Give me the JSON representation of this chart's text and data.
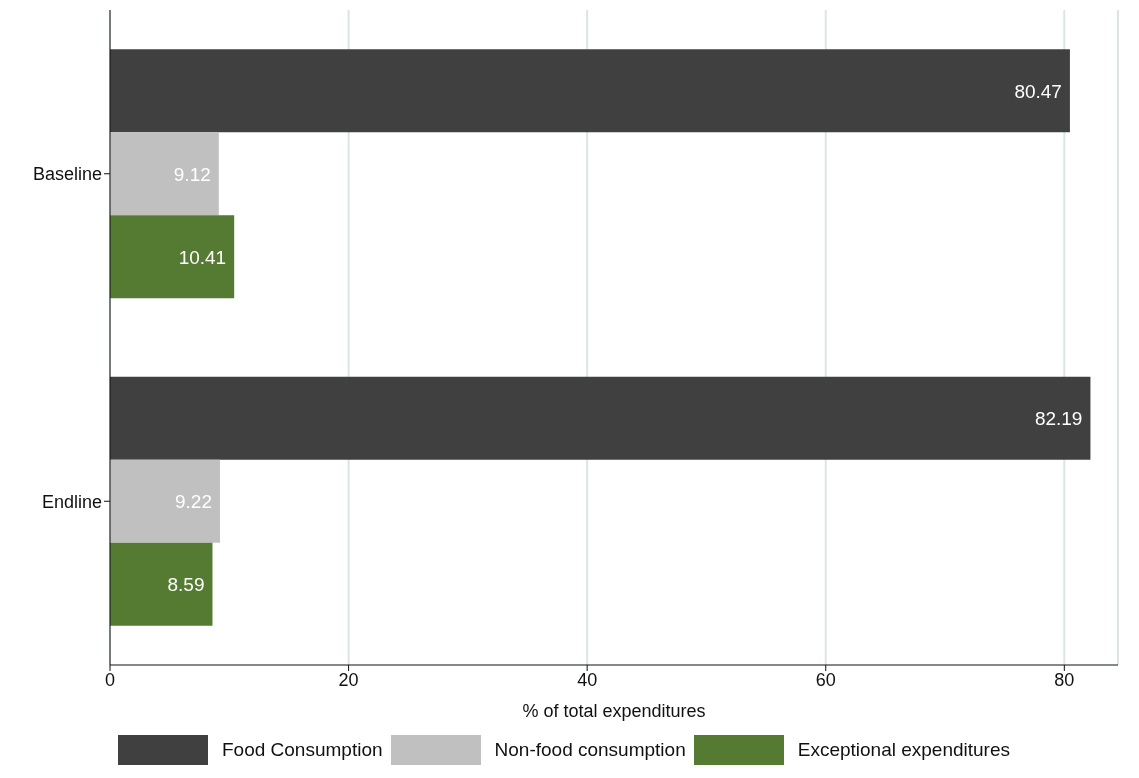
{
  "chart_data": {
    "type": "bar",
    "orientation": "horizontal",
    "categories": [
      "Baseline",
      "Endline"
    ],
    "series": [
      {
        "name": "Food Consumption",
        "color": "#404040",
        "values": [
          80.47,
          82.19
        ]
      },
      {
        "name": "Non-food consumption",
        "color": "#c0c0c0",
        "values": [
          9.12,
          9.22
        ]
      },
      {
        "name": "Exceptional expenditures",
        "color": "#557a32",
        "values": [
          10.41,
          8.59
        ]
      }
    ],
    "xlabel": "% of total expenditures",
    "xlim": [
      0,
      84.5
    ],
    "xticks": [
      0,
      20,
      40,
      60,
      80
    ],
    "grid": "x",
    "legend": "bottom",
    "data_labels": true
  }
}
